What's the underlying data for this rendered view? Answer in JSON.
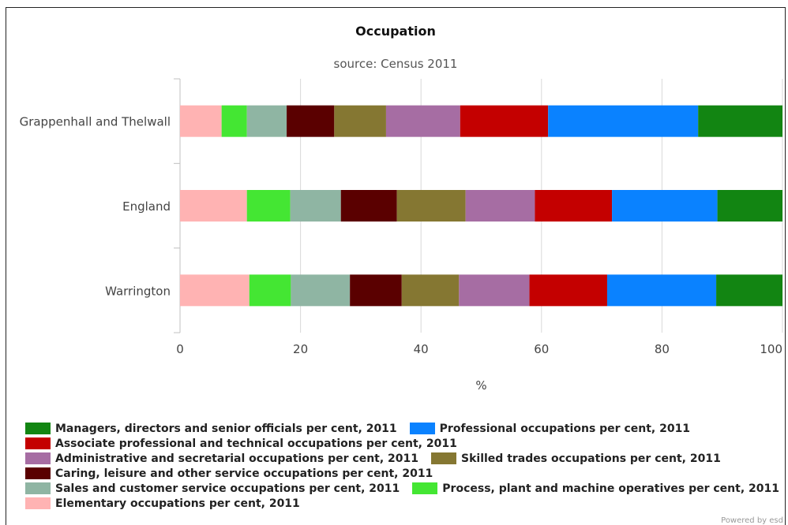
{
  "chart_data": {
    "type": "bar",
    "orientation": "horizontal",
    "stacked": true,
    "title": "Occupation",
    "subtitle": "source: Census 2011",
    "xlabel": "%",
    "xlim": [
      0,
      100
    ],
    "xticks": [
      "0",
      "20",
      "40",
      "60",
      "80",
      "100"
    ],
    "categories": [
      "Grappenhall and Thelwall",
      "England",
      "Warrington"
    ],
    "series": [
      {
        "name": "Elementary occupations per cent, 2011",
        "color": "#ffb3b3",
        "values": [
          6.9,
          11.1,
          11.5
        ]
      },
      {
        "name": "Process, plant and machine operatives per cent, 2011",
        "color": "#44e633",
        "values": [
          4.2,
          7.2,
          6.9
        ]
      },
      {
        "name": "Sales and customer service occupations per cent, 2011",
        "color": "#8fb5a3",
        "values": [
          6.6,
          8.4,
          9.8
        ]
      },
      {
        "name": "Caring, leisure and other service occupations per cent, 2011",
        "color": "#5a0000",
        "values": [
          7.9,
          9.3,
          8.6
        ]
      },
      {
        "name": "Skilled trades occupations per cent, 2011",
        "color": "#857732",
        "values": [
          8.6,
          11.4,
          9.5
        ]
      },
      {
        "name": "Administrative and secretarial occupations per cent, 2011",
        "color": "#a66da3",
        "values": [
          12.3,
          11.5,
          11.7
        ]
      },
      {
        "name": "Associate professional and technical occupations per cent, 2011",
        "color": "#c40000",
        "values": [
          14.6,
          12.8,
          12.9
        ]
      },
      {
        "name": "Professional occupations per cent, 2011",
        "color": "#0a82ff",
        "values": [
          24.9,
          17.5,
          18.1
        ]
      },
      {
        "name": "Managers, directors and senior officials per cent, 2011",
        "color": "#128512",
        "values": [
          14.0,
          10.8,
          11.0
        ]
      }
    ],
    "grid": true,
    "legend_position": "bottom"
  },
  "legend_rows": [
    [
      "Managers, directors and senior officials per cent, 2011",
      "Professional occupations per cent, 2011"
    ],
    [
      "Associate professional and technical occupations per cent, 2011"
    ],
    [
      "Administrative and secretarial occupations per cent, 2011",
      "Skilled trades occupations per cent, 2011"
    ],
    [
      "Caring, leisure and other service occupations per cent, 2011"
    ],
    [
      "Sales and customer service occupations per cent, 2011",
      "Process, plant and machine operatives per cent, 2011"
    ],
    [
      "Elementary occupations per cent, 2011"
    ]
  ],
  "credit": "Powered by esd"
}
